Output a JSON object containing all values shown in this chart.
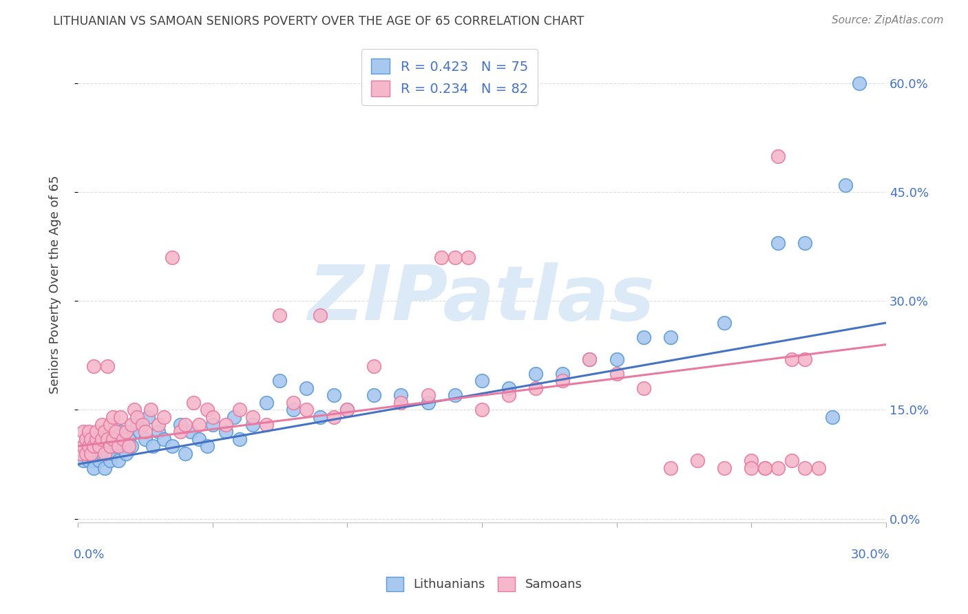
{
  "title": "LITHUANIAN VS SAMOAN SENIORS POVERTY OVER THE AGE OF 65 CORRELATION CHART",
  "source": "Source: ZipAtlas.com",
  "ylabel": "Seniors Poverty Over the Age of 65",
  "xlim": [
    0.0,
    0.3
  ],
  "ylim": [
    -0.005,
    0.65
  ],
  "yticks": [
    0.0,
    0.15,
    0.3,
    0.45,
    0.6
  ],
  "ytick_labels": [
    "0.0%",
    "15.0%",
    "30.0%",
    "45.0%",
    "60.0%"
  ],
  "xtick_positions": [
    0.0,
    0.05,
    0.1,
    0.15,
    0.2,
    0.25,
    0.3
  ],
  "legend_blue_label": "R = 0.423   N = 75",
  "legend_pink_label": "R = 0.234   N = 82",
  "blue_color": "#a8c8f0",
  "pink_color": "#f5b8cb",
  "blue_edge_color": "#5b9bd5",
  "pink_edge_color": "#e879a0",
  "blue_line_color": "#4472c4",
  "pink_line_color": "#e879a0",
  "axis_label_color": "#4472c4",
  "watermark": "ZIPatlas",
  "watermark_color": "#dce9f7",
  "background_color": "#ffffff",
  "title_color": "#404040",
  "source_color": "#808080",
  "ylabel_color": "#404040",
  "grid_color": "#dddddd",
  "spine_color": "#cccccc",
  "blue_scatter_x": [
    0.001,
    0.002,
    0.002,
    0.003,
    0.003,
    0.004,
    0.004,
    0.005,
    0.005,
    0.006,
    0.006,
    0.007,
    0.007,
    0.008,
    0.008,
    0.009,
    0.01,
    0.01,
    0.011,
    0.011,
    0.012,
    0.012,
    0.013,
    0.013,
    0.014,
    0.015,
    0.015,
    0.016,
    0.017,
    0.018,
    0.019,
    0.02,
    0.022,
    0.023,
    0.025,
    0.026,
    0.028,
    0.03,
    0.032,
    0.035,
    0.038,
    0.04,
    0.042,
    0.045,
    0.048,
    0.05,
    0.055,
    0.058,
    0.06,
    0.065,
    0.07,
    0.075,
    0.08,
    0.085,
    0.09,
    0.095,
    0.1,
    0.11,
    0.12,
    0.13,
    0.14,
    0.15,
    0.16,
    0.17,
    0.18,
    0.19,
    0.2,
    0.21,
    0.22,
    0.24,
    0.26,
    0.27,
    0.28,
    0.285,
    0.29
  ],
  "blue_scatter_y": [
    0.09,
    0.1,
    0.08,
    0.09,
    0.11,
    0.08,
    0.1,
    0.09,
    0.1,
    0.08,
    0.07,
    0.09,
    0.1,
    0.08,
    0.11,
    0.09,
    0.07,
    0.1,
    0.09,
    0.11,
    0.1,
    0.08,
    0.11,
    0.09,
    0.1,
    0.08,
    0.11,
    0.12,
    0.1,
    0.09,
    0.11,
    0.1,
    0.13,
    0.12,
    0.11,
    0.14,
    0.1,
    0.12,
    0.11,
    0.1,
    0.13,
    0.09,
    0.12,
    0.11,
    0.1,
    0.13,
    0.12,
    0.14,
    0.11,
    0.13,
    0.16,
    0.19,
    0.15,
    0.18,
    0.14,
    0.17,
    0.15,
    0.17,
    0.17,
    0.16,
    0.17,
    0.19,
    0.18,
    0.2,
    0.2,
    0.22,
    0.22,
    0.25,
    0.25,
    0.27,
    0.38,
    0.38,
    0.14,
    0.46,
    0.6
  ],
  "pink_scatter_x": [
    0.001,
    0.002,
    0.002,
    0.003,
    0.003,
    0.004,
    0.004,
    0.005,
    0.005,
    0.006,
    0.006,
    0.007,
    0.007,
    0.008,
    0.009,
    0.009,
    0.01,
    0.01,
    0.011,
    0.011,
    0.012,
    0.012,
    0.013,
    0.013,
    0.014,
    0.015,
    0.016,
    0.017,
    0.018,
    0.019,
    0.02,
    0.021,
    0.022,
    0.024,
    0.025,
    0.027,
    0.03,
    0.032,
    0.035,
    0.038,
    0.04,
    0.043,
    0.045,
    0.048,
    0.05,
    0.055,
    0.06,
    0.065,
    0.07,
    0.075,
    0.08,
    0.085,
    0.09,
    0.095,
    0.1,
    0.11,
    0.12,
    0.13,
    0.135,
    0.14,
    0.145,
    0.15,
    0.16,
    0.17,
    0.18,
    0.19,
    0.2,
    0.21,
    0.22,
    0.23,
    0.24,
    0.25,
    0.255,
    0.26,
    0.265,
    0.27,
    0.275,
    0.25,
    0.255,
    0.26,
    0.265,
    0.27
  ],
  "pink_scatter_y": [
    0.09,
    0.1,
    0.12,
    0.09,
    0.11,
    0.1,
    0.12,
    0.11,
    0.09,
    0.1,
    0.21,
    0.11,
    0.12,
    0.1,
    0.11,
    0.13,
    0.09,
    0.12,
    0.21,
    0.11,
    0.1,
    0.13,
    0.14,
    0.11,
    0.12,
    0.1,
    0.14,
    0.11,
    0.12,
    0.1,
    0.13,
    0.15,
    0.14,
    0.13,
    0.12,
    0.15,
    0.13,
    0.14,
    0.36,
    0.12,
    0.13,
    0.16,
    0.13,
    0.15,
    0.14,
    0.13,
    0.15,
    0.14,
    0.13,
    0.28,
    0.16,
    0.15,
    0.28,
    0.14,
    0.15,
    0.21,
    0.16,
    0.17,
    0.36,
    0.36,
    0.36,
    0.15,
    0.17,
    0.18,
    0.19,
    0.22,
    0.2,
    0.18,
    0.07,
    0.08,
    0.07,
    0.08,
    0.07,
    0.07,
    0.08,
    0.07,
    0.07,
    0.07,
    0.07,
    0.5,
    0.22,
    0.22
  ],
  "blue_line_x": [
    0.0,
    0.3
  ],
  "blue_line_y": [
    0.075,
    0.27
  ],
  "pink_line_x": [
    0.0,
    0.3
  ],
  "pink_line_y": [
    0.1,
    0.24
  ]
}
